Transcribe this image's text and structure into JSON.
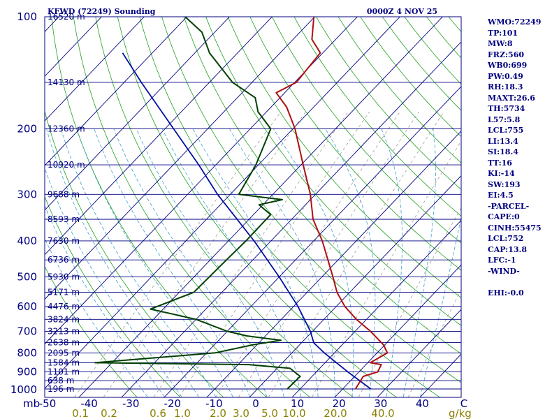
{
  "header": {
    "title": "KFWD (72249) Sounding",
    "time": "0000Z  4 NOV 25"
  },
  "indices": [
    "WMO:72249",
    "TP:101",
    "MW:8",
    "FRZ:560",
    "WB0:699",
    "PW:0.49",
    "RH:18.3",
    "MAXT:26.6",
    "TH:5734",
    "L57:5.8",
    "LCL:755",
    "LI:13.4",
    "SI:18.4",
    "TT:16",
    "KI:-14",
    "SW:193",
    "EI:4.5",
    "-PARCEL-",
    "CAPE:0",
    "CINH:55475",
    "LCL:752",
    "CAP:13.8",
    "LFC:-1",
    "-WIND-",
    "",
    "EHI:-0.0"
  ],
  "colors": {
    "background": "#ffffff",
    "frame": "#000080",
    "isobar": "#000080",
    "isotherm": "#000080",
    "dry_adiabat": "#22a022",
    "moist_adiabat": "#40a0d0",
    "mixing_ratio": "#a0a090",
    "temperature": "#b01010",
    "dewpoint": "#004000",
    "parcel": "#0010a0",
    "pressure_text": "#000080",
    "mixing_text": "#8a8000"
  },
  "chart_data": {
    "type": "line",
    "title": "KFWD (72249) Sounding",
    "subtitle": "0000Z  4 NOV 25",
    "x_unit_label": "mb",
    "mixing_unit_label": "g/kg",
    "pressure_levels": [
      100,
      200,
      300,
      400,
      500,
      600,
      700,
      800,
      900,
      1000
    ],
    "pressure_labels": [
      "100",
      "200",
      "300",
      "400",
      "500",
      "600",
      "700",
      "800",
      "900",
      "1000"
    ],
    "temperature_ticks": [
      -50,
      -40,
      -30,
      -20,
      -10,
      0,
      10,
      20,
      30,
      40
    ],
    "temperature_tick_labels": [
      "-50",
      "-40",
      "-30",
      "-20",
      "-10",
      "0",
      "10",
      "20",
      "30",
      "40",
      "C"
    ],
    "mixing_ratio_labels": [
      "0.1",
      "0.2",
      "0.6",
      "1.0",
      "2.0",
      "3.0",
      "5.0",
      "10.0",
      "20.0",
      "40.0"
    ],
    "height_labels": [
      {
        "p": 100,
        "label": "16520 m"
      },
      {
        "p": 150,
        "label": "14130 m"
      },
      {
        "p": 200,
        "label": "12360 m"
      },
      {
        "p": 250,
        "label": "10920 m"
      },
      {
        "p": 300,
        "label": "9688 m"
      },
      {
        "p": 350,
        "label": "8593 m"
      },
      {
        "p": 400,
        "label": "7630 m"
      },
      {
        "p": 450,
        "label": "6736 m"
      },
      {
        "p": 500,
        "label": "5930 m"
      },
      {
        "p": 550,
        "label": "5171 m"
      },
      {
        "p": 600,
        "label": "4476 m"
      },
      {
        "p": 650,
        "label": "3824 m"
      },
      {
        "p": 700,
        "label": "3213 m"
      },
      {
        "p": 750,
        "label": "2638 m"
      },
      {
        "p": 800,
        "label": "2095 m"
      },
      {
        "p": 850,
        "label": "1584 m"
      },
      {
        "p": 900,
        "label": "1101 m"
      },
      {
        "p": 950,
        "label": "638 m"
      },
      {
        "p": 1000,
        "label": "196 m"
      }
    ],
    "temperature_profile": [
      {
        "p": 1000,
        "t": 23.0
      },
      {
        "p": 925,
        "t": 22.0
      },
      {
        "p": 900,
        "t": 24.4
      },
      {
        "p": 860,
        "t": 23.6
      },
      {
        "p": 850,
        "t": 20.6
      },
      {
        "p": 800,
        "t": 22.4
      },
      {
        "p": 760,
        "t": 19.6
      },
      {
        "p": 700,
        "t": 13.6
      },
      {
        "p": 650,
        "t": 7.6
      },
      {
        "p": 600,
        "t": 2.0
      },
      {
        "p": 550,
        "t": -3.0
      },
      {
        "p": 500,
        "t": -7.4
      },
      {
        "p": 450,
        "t": -12.4
      },
      {
        "p": 400,
        "t": -18.0
      },
      {
        "p": 350,
        "t": -25.0
      },
      {
        "p": 300,
        "t": -31.2
      },
      {
        "p": 250,
        "t": -39.5
      },
      {
        "p": 200,
        "t": -49.5
      },
      {
        "p": 175,
        "t": -56.3
      },
      {
        "p": 160,
        "t": -62.0
      },
      {
        "p": 150,
        "t": -59.6
      },
      {
        "p": 125,
        "t": -60.6
      },
      {
        "p": 115,
        "t": -65.6
      },
      {
        "p": 100,
        "t": -70.2
      }
    ],
    "dewpoint_profile": [
      {
        "p": 1000,
        "t": 7.0
      },
      {
        "p": 925,
        "t": 7.2
      },
      {
        "p": 880,
        "t": 3.0
      },
      {
        "p": 860,
        "t": -7.5
      },
      {
        "p": 850,
        "t": -44.0
      },
      {
        "p": 800,
        "t": -18.0
      },
      {
        "p": 760,
        "t": -10.8
      },
      {
        "p": 740,
        "t": -5.4
      },
      {
        "p": 720,
        "t": -14.4
      },
      {
        "p": 700,
        "t": -20.0
      },
      {
        "p": 650,
        "t": -30.0
      },
      {
        "p": 610,
        "t": -43.0
      },
      {
        "p": 550,
        "t": -36.6
      },
      {
        "p": 450,
        "t": -36.2
      },
      {
        "p": 400,
        "t": -35.9
      },
      {
        "p": 340,
        "t": -36.0
      },
      {
        "p": 320,
        "t": -40.9
      },
      {
        "p": 310,
        "t": -36.6
      },
      {
        "p": 300,
        "t": -48.0
      },
      {
        "p": 250,
        "t": -50.6
      },
      {
        "p": 200,
        "t": -55.2
      },
      {
        "p": 180,
        "t": -62.0
      },
      {
        "p": 165,
        "t": -65.8
      },
      {
        "p": 150,
        "t": -74.6
      },
      {
        "p": 125,
        "t": -86.6
      },
      {
        "p": 110,
        "t": -93.0
      },
      {
        "p": 100,
        "t": -100.4
      }
    ],
    "parcel_profile": [
      {
        "p": 1000,
        "t": 26.6
      },
      {
        "p": 900,
        "t": 17.4
      },
      {
        "p": 800,
        "t": 7.6
      },
      {
        "p": 752,
        "t": 2.9
      },
      {
        "p": 700,
        "t": -0.5
      },
      {
        "p": 600,
        "t": -9.0
      },
      {
        "p": 500,
        "t": -20.0
      },
      {
        "p": 400,
        "t": -34.0
      },
      {
        "p": 300,
        "t": -53.0
      },
      {
        "p": 250,
        "t": -64.0
      },
      {
        "p": 200,
        "t": -78.0
      },
      {
        "p": 150,
        "t": -96.0
      },
      {
        "p": 125,
        "t": -107.0
      }
    ]
  }
}
